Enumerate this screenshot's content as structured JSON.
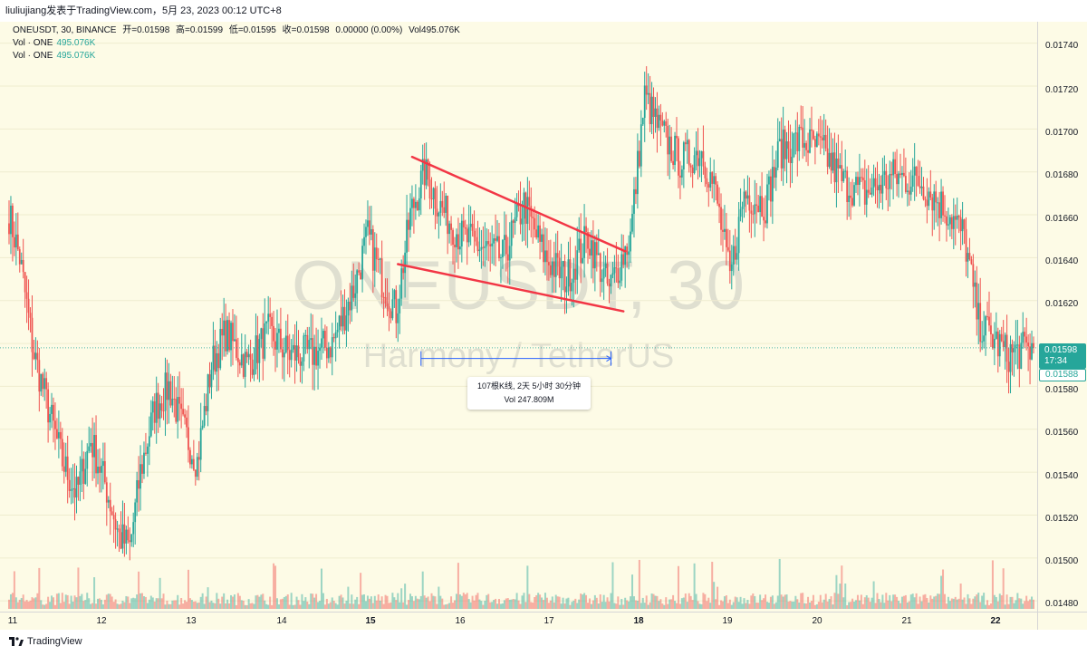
{
  "header": {
    "text": "liuliujiang发表于TradingView.com，5月 23, 2023 00:12 UTC+8"
  },
  "legend": {
    "symbol": "ONEUSDT, 30, BINANCE",
    "open": "开=0.01598",
    "high": "高=0.01599",
    "low": "低=0.01595",
    "close": "收=0.01598",
    "change": "0.00000 (0.00%)",
    "volume": "Vol495.076K",
    "vol_rows": [
      {
        "label": "Vol · ONE",
        "value": "495.076K"
      },
      {
        "label": "Vol · ONE",
        "value": "495.076K"
      }
    ]
  },
  "watermark": {
    "symbol": "ONEUSDT, 30",
    "description": "Harmony / TetherUS"
  },
  "price_axis": {
    "labels": [
      "0.01740",
      "0.01720",
      "0.01700",
      "0.01680",
      "0.01660",
      "0.01640",
      "0.01620",
      "0.01600",
      "0.01580",
      "0.01560",
      "0.01540",
      "0.01520",
      "0.01500",
      "0.01480"
    ],
    "last_price": "0.01598",
    "countdown": "17:34",
    "prev_price": "0.01588"
  },
  "time_axis": {
    "labels": [
      "11",
      "12",
      "13",
      "14",
      "15",
      "16",
      "17",
      "18",
      "19",
      "20",
      "21",
      "22"
    ]
  },
  "measure": {
    "line1": "107根K线, 2天 5小时 30分钟",
    "line2": "Vol 247.809M"
  },
  "footer": {
    "brand": "TradingView"
  },
  "colors": {
    "up": "#26a69a",
    "down": "#ef5350",
    "trendline": "#f23645",
    "measure": "#2962ff",
    "background": "#fdfbe6"
  },
  "chart_data": {
    "type": "candlestick",
    "symbol": "ONEUSDT",
    "interval": "30",
    "exchange": "BINANCE",
    "ylim": [
      0.01475,
      0.0175
    ],
    "x_range": [
      "05-10 23:00",
      "05-22 23:30"
    ],
    "anchors": [
      [
        "05-10 23:00",
        0.0166
      ],
      [
        "05-11 02:00",
        0.0164
      ],
      [
        "05-11 06:00",
        0.01595
      ],
      [
        "05-11 10:00",
        0.0157
      ],
      [
        "05-11 14:00",
        0.01545
      ],
      [
        "05-11 18:00",
        0.0153
      ],
      [
        "05-11 22:00",
        0.01555
      ],
      [
        "05-12 02:00",
        0.01535
      ],
      [
        "05-12 06:00",
        0.0151
      ],
      [
        "05-12 09:00",
        0.01505
      ],
      [
        "05-12 12:00",
        0.0154
      ],
      [
        "05-12 16:00",
        0.0157
      ],
      [
        "05-12 20:00",
        0.0158
      ],
      [
        "05-13 00:00",
        0.0156
      ],
      [
        "05-13 04:00",
        0.01545
      ],
      [
        "05-13 08:00",
        0.0159
      ],
      [
        "05-13 12:00",
        0.01605
      ],
      [
        "05-13 18:00",
        0.0159
      ],
      [
        "05-14 00:00",
        0.01605
      ],
      [
        "05-14 06:00",
        0.01595
      ],
      [
        "05-14 12:00",
        0.01595
      ],
      [
        "05-14 18:00",
        0.016
      ],
      [
        "05-15 00:00",
        0.01625
      ],
      [
        "05-15 04:00",
        0.0165
      ],
      [
        "05-15 08:00",
        0.0163
      ],
      [
        "05-15 12:00",
        0.01615
      ],
      [
        "05-15 16:00",
        0.0166
      ],
      [
        "05-15 20:00",
        0.0168
      ],
      [
        "05-16 00:00",
        0.01665
      ],
      [
        "05-16 06:00",
        0.0165
      ],
      [
        "05-16 12:00",
        0.01645
      ],
      [
        "05-16 18:00",
        0.0164
      ],
      [
        "05-17 00:00",
        0.01665
      ],
      [
        "05-17 06:00",
        0.0164
      ],
      [
        "05-17 12:00",
        0.0163
      ],
      [
        "05-17 18:00",
        0.0165
      ],
      [
        "05-18 00:00",
        0.01625
      ],
      [
        "05-18 06:00",
        0.0165
      ],
      [
        "05-18 10:00",
        0.01715
      ],
      [
        "05-18 14:00",
        0.017
      ],
      [
        "05-18 20:00",
        0.01685
      ],
      [
        "05-19 02:00",
        0.0169
      ],
      [
        "05-19 06:00",
        0.0167
      ],
      [
        "05-19 10:00",
        0.0163
      ],
      [
        "05-19 14:00",
        0.0167
      ],
      [
        "05-19 20:00",
        0.01665
      ],
      [
        "05-20 00:00",
        0.0169
      ],
      [
        "05-20 06:00",
        0.01695
      ],
      [
        "05-20 12:00",
        0.0169
      ],
      [
        "05-20 18:00",
        0.01675
      ],
      [
        "05-21 00:00",
        0.0167
      ],
      [
        "05-21 08:00",
        0.01678
      ],
      [
        "05-21 16:00",
        0.01675
      ],
      [
        "05-22 00:00",
        0.0166
      ],
      [
        "05-22 04:00",
        0.0165
      ],
      [
        "05-22 08:00",
        0.0161
      ],
      [
        "05-22 16:00",
        0.01595
      ],
      [
        "05-22 23:30",
        0.01598
      ]
    ],
    "trendlines": [
      {
        "from": [
          "05-15 16:30",
          0.01687
        ],
        "to": [
          "05-18 04:30",
          0.01643
        ]
      },
      {
        "from": [
          "05-15 12:30",
          0.01637
        ],
        "to": [
          "05-18 04:00",
          0.01615
        ]
      }
    ],
    "measure_range": {
      "from": [
        "05-15 19:00",
        0.01593
      ],
      "to": [
        "05-18 00:30",
        0.01593
      ]
    }
  }
}
